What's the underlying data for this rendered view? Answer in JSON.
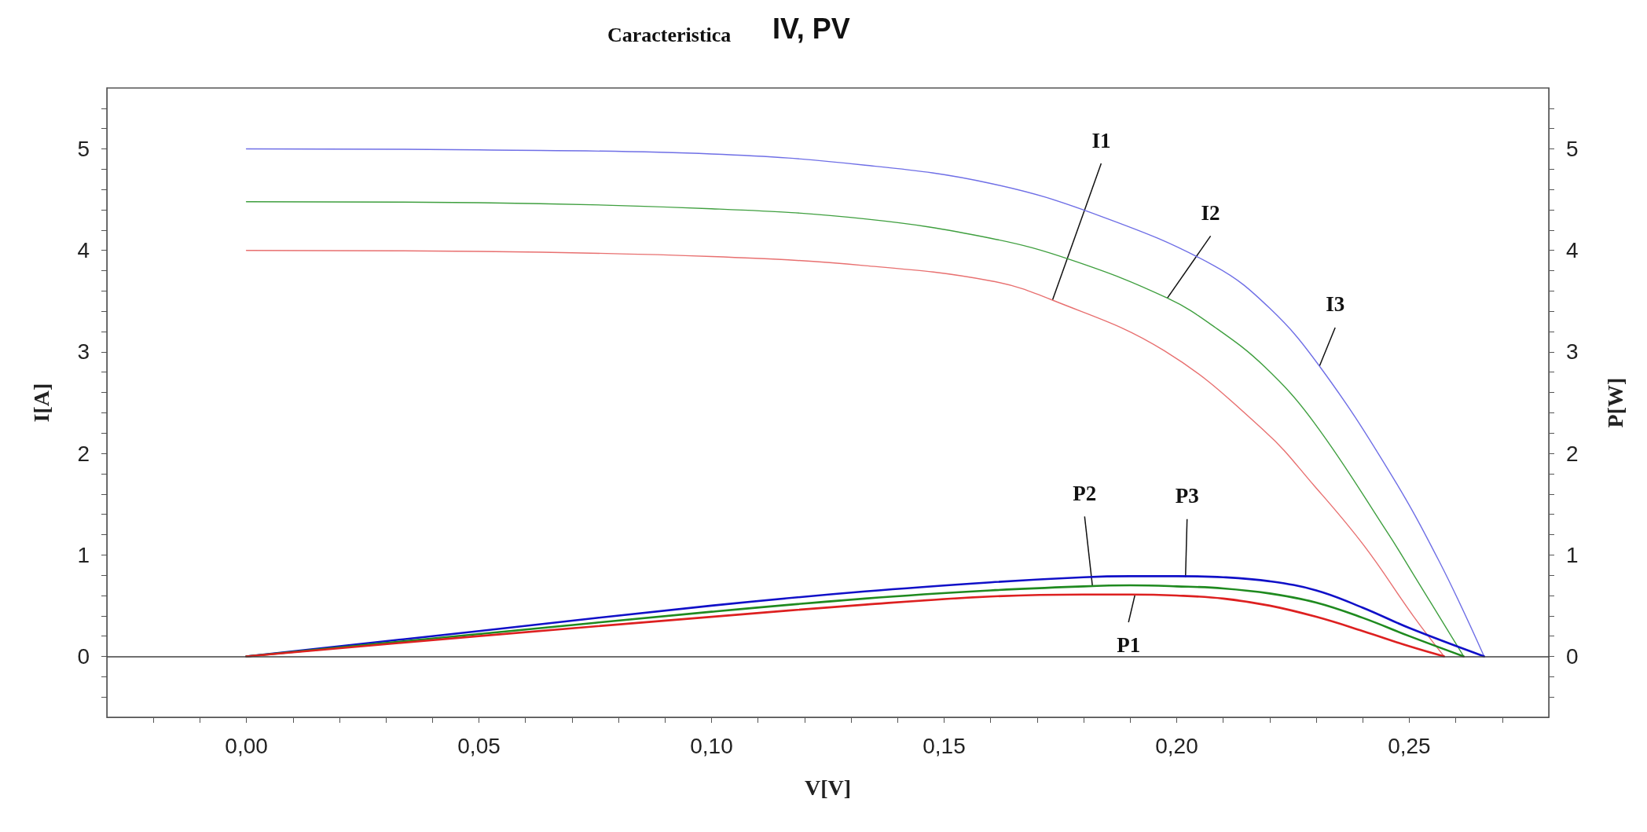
{
  "chart_data": {
    "type": "line",
    "title": "Caracteristica",
    "subtitle": "IV, PV",
    "xlabel": "V[V]",
    "ylabel": "I[A]",
    "y2label": "P[W]",
    "xlim": [
      -0.03,
      0.28
    ],
    "xticks": [
      {
        "value": -0.02,
        "label": null
      },
      {
        "value": -0.01,
        "label": null
      },
      {
        "value": 0,
        "label": "0,00"
      },
      {
        "value": 0.01,
        "label": null
      },
      {
        "value": 0.02,
        "label": null
      },
      {
        "value": 0.03,
        "label": null
      },
      {
        "value": 0.04,
        "label": null
      },
      {
        "value": 0.05,
        "label": "0,05"
      },
      {
        "value": 0.06,
        "label": null
      },
      {
        "value": 0.07,
        "label": null
      },
      {
        "value": 0.08,
        "label": null
      },
      {
        "value": 0.09,
        "label": null
      },
      {
        "value": 0.1,
        "label": "0,10"
      },
      {
        "value": 0.11,
        "label": null
      },
      {
        "value": 0.12,
        "label": null
      },
      {
        "value": 0.13,
        "label": null
      },
      {
        "value": 0.14,
        "label": null
      },
      {
        "value": 0.15,
        "label": "0,15"
      },
      {
        "value": 0.16,
        "label": null
      },
      {
        "value": 0.17,
        "label": null
      },
      {
        "value": 0.18,
        "label": null
      },
      {
        "value": 0.19,
        "label": null
      },
      {
        "value": 0.2,
        "label": "0,20"
      },
      {
        "value": 0.21,
        "label": null
      },
      {
        "value": 0.22,
        "label": null
      },
      {
        "value": 0.23,
        "label": null
      },
      {
        "value": 0.24,
        "label": null
      },
      {
        "value": 0.25,
        "label": "0,25"
      },
      {
        "value": 0.26,
        "label": null
      },
      {
        "value": 0.27,
        "label": null
      }
    ],
    "ylim": [
      -0.6,
      5.6
    ],
    "yticks": [
      {
        "value": -0.4,
        "label": null
      },
      {
        "value": -0.2,
        "label": null
      },
      0,
      {
        "value": 0.2,
        "label": null
      },
      {
        "value": 0.4,
        "label": null
      },
      {
        "value": 0.6,
        "label": null
      },
      {
        "value": 0.8,
        "label": null
      },
      1,
      {
        "value": 1.2,
        "label": null
      },
      {
        "value": 1.4,
        "label": null
      },
      {
        "value": 1.6,
        "label": null
      },
      {
        "value": 1.8,
        "label": null
      },
      2,
      {
        "value": 2.2,
        "label": null
      },
      {
        "value": 2.4,
        "label": null
      },
      {
        "value": 2.6,
        "label": null
      },
      {
        "value": 2.8,
        "label": null
      },
      3,
      {
        "value": 3.2,
        "label": null
      },
      {
        "value": 3.4,
        "label": null
      },
      {
        "value": 3.6,
        "label": null
      },
      {
        "value": 3.8,
        "label": null
      },
      4,
      {
        "value": 4.2,
        "label": null
      },
      {
        "value": 4.4,
        "label": null
      },
      {
        "value": 4.6,
        "label": null
      },
      {
        "value": 4.8,
        "label": null
      },
      5,
      {
        "value": 5.2,
        "label": null
      },
      {
        "value": 5.4,
        "label": null
      }
    ],
    "y2lim": [
      -0.6,
      5.6
    ],
    "y2ticks": [
      {
        "value": -0.4,
        "label": null
      },
      {
        "value": -0.2,
        "label": null
      },
      0,
      {
        "value": 0.2,
        "label": null
      },
      {
        "value": 0.4,
        "label": null
      },
      {
        "value": 0.6,
        "label": null
      },
      {
        "value": 0.8,
        "label": null
      },
      1,
      {
        "value": 1.2,
        "label": null
      },
      {
        "value": 1.4,
        "label": null
      },
      {
        "value": 1.6,
        "label": null
      },
      {
        "value": 1.8,
        "label": null
      },
      2,
      {
        "value": 2.2,
        "label": null
      },
      {
        "value": 2.4,
        "label": null
      },
      {
        "value": 2.6,
        "label": null
      },
      {
        "value": 2.8,
        "label": null
      },
      3,
      {
        "value": 3.2,
        "label": null
      },
      {
        "value": 3.4,
        "label": null
      },
      {
        "value": 3.6,
        "label": null
      },
      {
        "value": 3.8,
        "label": null
      },
      4,
      {
        "value": 4.2,
        "label": null
      },
      {
        "value": 4.4,
        "label": null
      },
      {
        "value": 4.6,
        "label": null
      },
      {
        "value": 4.8,
        "label": null
      },
      5,
      {
        "value": 5.2,
        "label": null
      },
      {
        "value": 5.4,
        "label": null
      }
    ],
    "grid": false,
    "marker": "none",
    "line_style": "solid",
    "ref_lines": [
      {
        "axis": "y",
        "value": 0,
        "color": "#404040"
      }
    ],
    "series": [
      {
        "color": "#6f6fe6",
        "x": [
          0,
          0.05,
          0.1,
          0.133,
          0.16,
          0.1835,
          0.208,
          0.22,
          0.2307,
          0.2456,
          0.2564,
          0.2661
        ],
        "values": [
          5.0,
          4.99,
          4.95,
          4.84,
          4.66,
          4.34,
          3.85,
          3.43,
          2.86,
          1.83,
          0.94,
          0
        ]
      },
      {
        "color": "#3f9f3f",
        "x": [
          0,
          0.05,
          0.1,
          0.133,
          0.16,
          0.1777,
          0.198,
          0.208,
          0.219,
          0.2296,
          0.2456,
          0.251,
          0.2617
        ],
        "values": [
          4.48,
          4.47,
          4.41,
          4.31,
          4.12,
          3.9,
          3.53,
          3.25,
          2.85,
          2.3,
          1.2,
          0.8,
          0
        ]
      },
      {
        "color": "#e87070",
        "x": [
          0,
          0.05,
          0.1,
          0.133,
          0.16,
          0.1733,
          0.1974,
          0.2189,
          0.2296,
          0.2403,
          0.251,
          0.2575
        ],
        "values": [
          4.0,
          3.99,
          3.94,
          3.85,
          3.7,
          3.51,
          3.01,
          2.22,
          1.68,
          1.09,
          0.39,
          0
        ]
      },
      {
        "color": "#1010c8",
        "axis": "y2",
        "x": [
          0,
          0.05,
          0.1,
          0.133,
          0.16,
          0.18,
          0.19,
          0.2,
          0.21,
          0.22,
          0.23,
          0.24,
          0.25,
          0.2661
        ],
        "values": [
          0,
          0.25,
          0.5,
          0.64,
          0.73,
          0.78,
          0.79,
          0.79,
          0.78,
          0.74,
          0.65,
          0.48,
          0.28,
          0
        ]
      },
      {
        "color": "#1f8a1f",
        "axis": "y2",
        "x": [
          0,
          0.05,
          0.1,
          0.133,
          0.16,
          0.18,
          0.19,
          0.2,
          0.21,
          0.22,
          0.23,
          0.24,
          0.25,
          0.2617
        ],
        "values": [
          0,
          0.22,
          0.44,
          0.57,
          0.65,
          0.69,
          0.7,
          0.69,
          0.67,
          0.62,
          0.53,
          0.38,
          0.2,
          0
        ]
      },
      {
        "color": "#dd2020",
        "axis": "y2",
        "x": [
          0,
          0.05,
          0.1,
          0.133,
          0.16,
          0.18,
          0.19,
          0.2,
          0.21,
          0.22,
          0.23,
          0.24,
          0.25,
          0.2575
        ],
        "values": [
          0,
          0.2,
          0.39,
          0.51,
          0.59,
          0.61,
          0.61,
          0.6,
          0.57,
          0.5,
          0.39,
          0.25,
          0.1,
          0
        ]
      }
    ],
    "annotations": [
      {
        "text": "I1",
        "x": 0.1733,
        "y": 3.51
      },
      {
        "text": "I2",
        "x": 0.198,
        "y": 3.53
      },
      {
        "text": "I3",
        "x": 0.2307,
        "y": 2.86
      },
      {
        "text": "P2",
        "x": 0.1819,
        "y": 0.69
      },
      {
        "text": "P3",
        "x": 0.2019,
        "y": 0.78
      },
      {
        "text": "P1",
        "x": 0.191,
        "y": 0.6
      }
    ]
  }
}
